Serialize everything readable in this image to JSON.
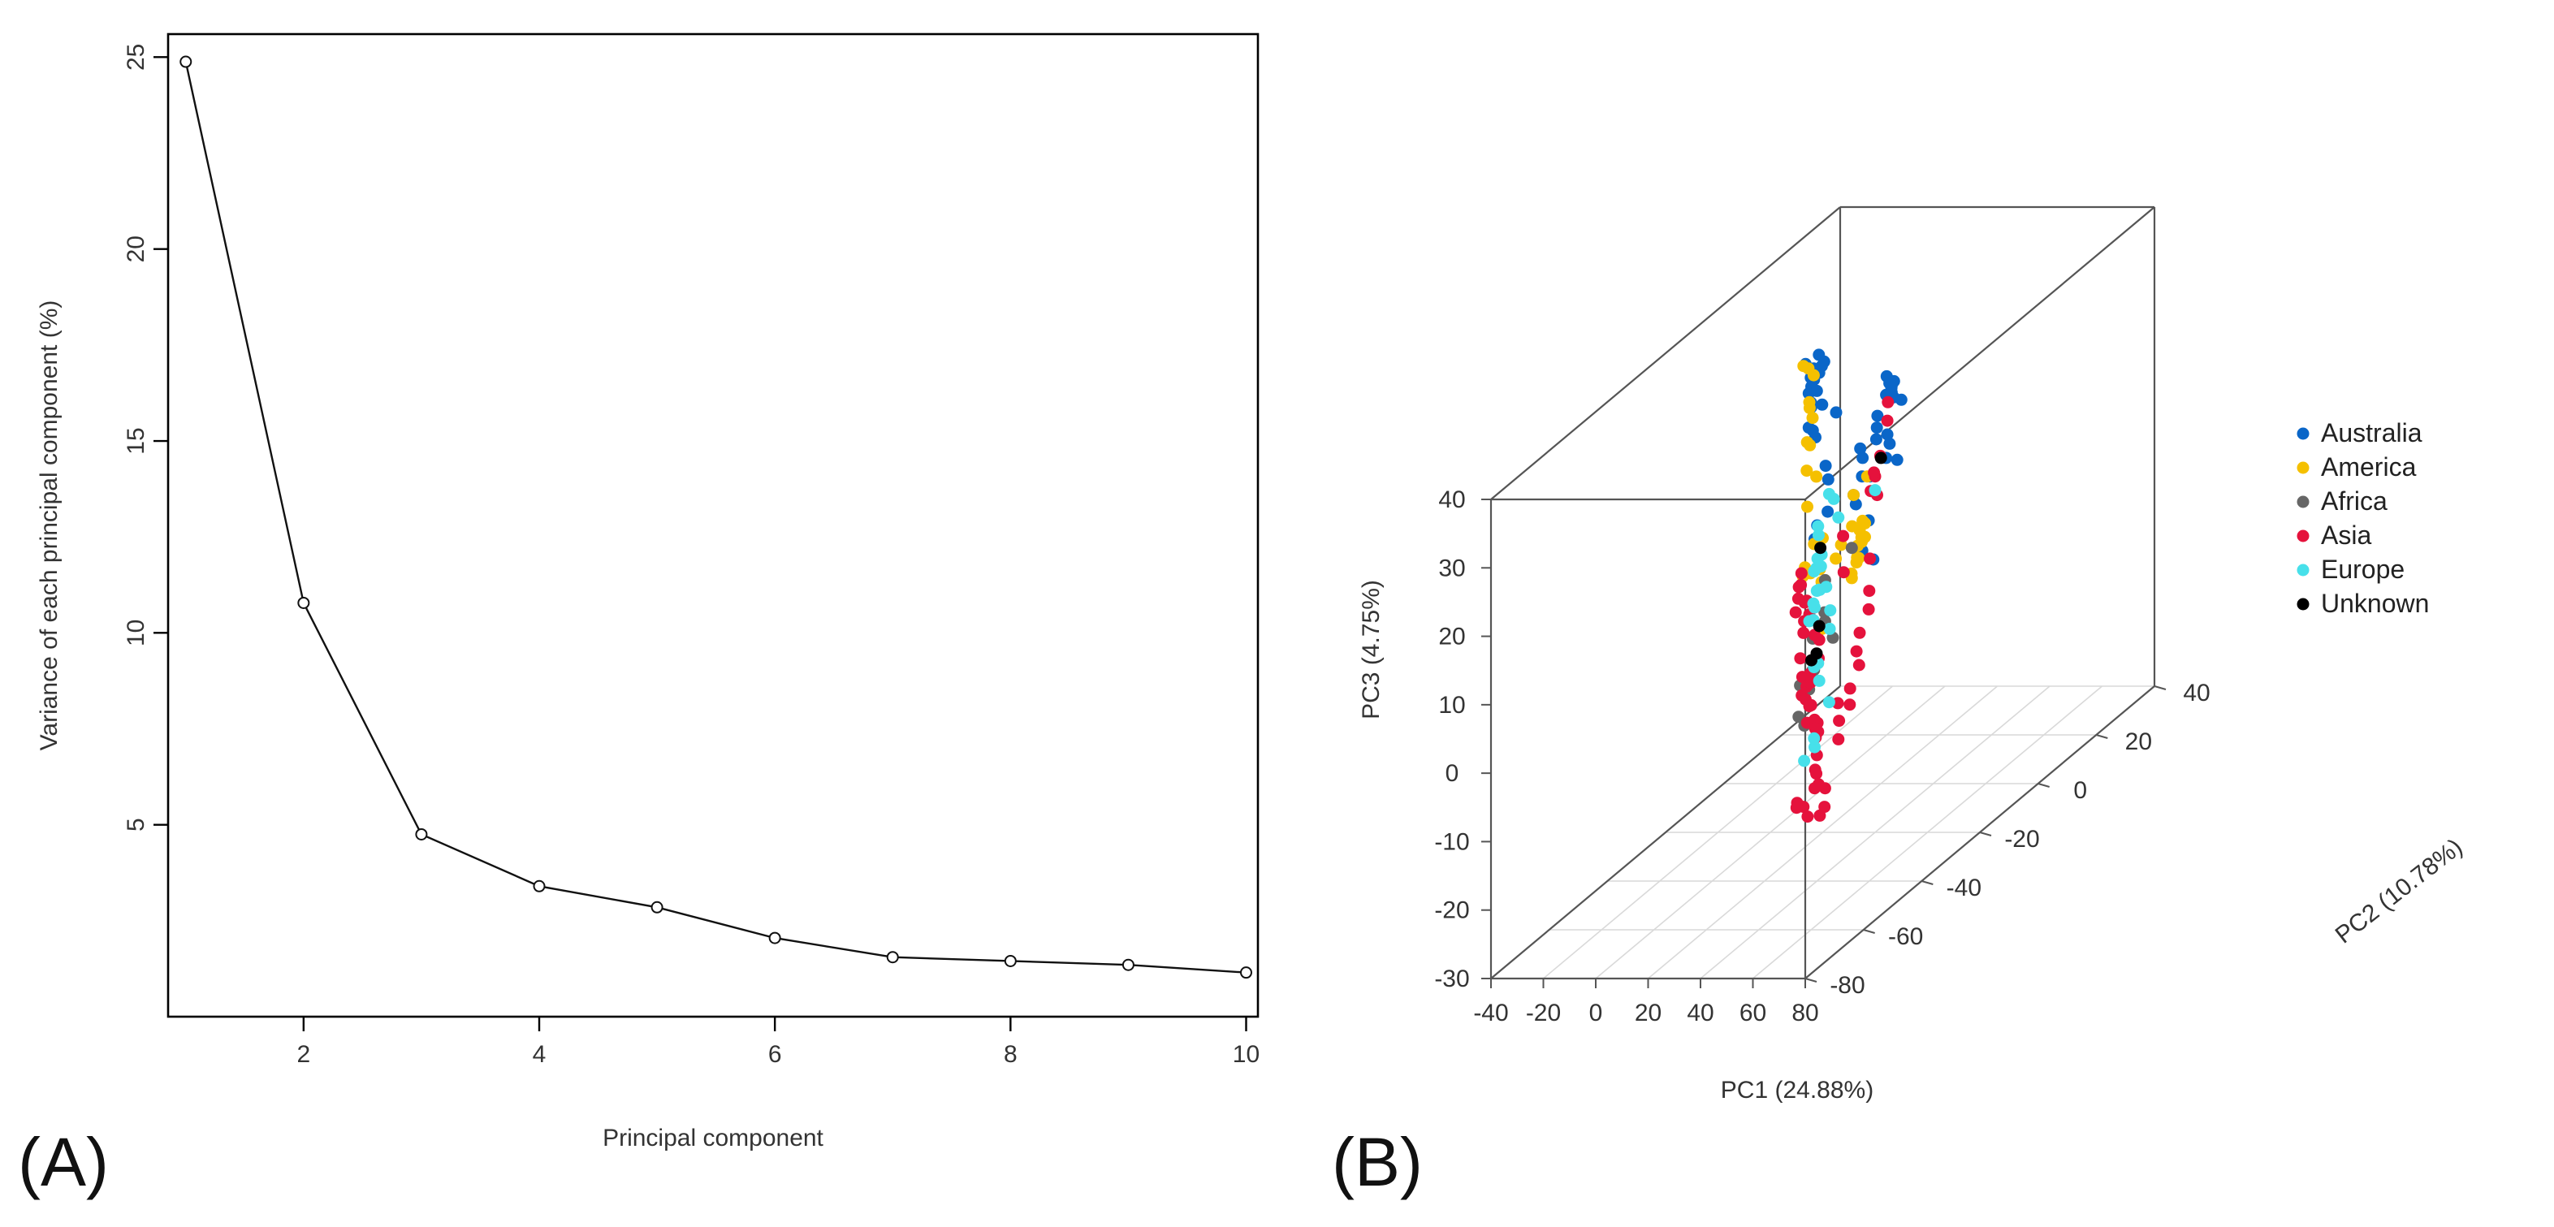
{
  "panels": {
    "a_label": "(A)",
    "b_label": "(B)"
  },
  "chart_data": [
    {
      "type": "line",
      "panel": "A",
      "title": "",
      "xlabel": "Principal component",
      "ylabel": "Variance of each principal component (%)",
      "x": [
        1,
        2,
        3,
        4,
        5,
        6,
        7,
        8,
        9,
        10
      ],
      "values": [
        24.88,
        10.78,
        4.75,
        3.4,
        2.85,
        2.05,
        1.55,
        1.45,
        1.35,
        1.15
      ],
      "xticks": [
        2,
        4,
        6,
        8,
        10
      ],
      "yticks": [
        5,
        10,
        15,
        20,
        25
      ],
      "xlim": [
        0.85,
        10.1
      ],
      "ylim": [
        0,
        25.6
      ],
      "marker": "open-circle"
    },
    {
      "type": "scatter",
      "panel": "B",
      "subtype": "3d-scatter",
      "title": "",
      "xlabel": "PC1 (24.88%)",
      "ylabel": "PC2 (10.78%)",
      "zlabel": "PC3 (4.75%)",
      "xticks": [
        -40,
        -20,
        0,
        20,
        40,
        60,
        80
      ],
      "yticks": [
        -80,
        -60,
        -40,
        -20,
        0,
        20,
        40
      ],
      "zticks": [
        -30,
        -20,
        -10,
        0,
        10,
        20,
        30,
        40
      ],
      "xlim": [
        -40,
        80
      ],
      "ylim": [
        -80,
        40
      ],
      "zlim": [
        -30,
        40
      ],
      "legend_position": "right",
      "legend": [
        {
          "name": "Australia",
          "color": "#0a66c8"
        },
        {
          "name": "America",
          "color": "#f5c000"
        },
        {
          "name": "Africa",
          "color": "#666666"
        },
        {
          "name": "Asia",
          "color": "#e5123c"
        },
        {
          "name": "Europe",
          "color": "#47e0ea"
        },
        {
          "name": "Unknown",
          "color": "#000000"
        }
      ],
      "series": [
        {
          "name": "Australia",
          "points": [
            [
              12,
              -14,
              35
            ],
            [
              13,
              -14,
              36
            ],
            [
              15,
              -15,
              37
            ],
            [
              10,
              -14,
              34
            ],
            [
              9,
              -14,
              33
            ],
            [
              8,
              -14,
              32
            ],
            [
              10,
              -13,
              32
            ],
            [
              11,
              -15,
              36
            ],
            [
              9,
              -16,
              37
            ],
            [
              13,
              -15,
              38
            ],
            [
              11,
              -16,
              35
            ],
            [
              10,
              -15,
              31
            ],
            [
              12,
              -13,
              30
            ],
            [
              9,
              -14,
              30
            ],
            [
              14,
              -18,
              28
            ],
            [
              15,
              -18,
              27
            ],
            [
              8,
              -14,
              27
            ],
            [
              10,
              -10,
              20
            ],
            [
              11,
              -10,
              18
            ],
            [
              13,
              -12,
              14
            ],
            [
              9,
              -12,
              12
            ],
            [
              8,
              -12,
              10
            ],
            [
              24,
              -19,
              31
            ],
            [
              30,
              -7,
              32
            ],
            [
              31,
              -7,
              31
            ],
            [
              32,
              -9,
              30
            ],
            [
              34,
              -9,
              31
            ],
            [
              33,
              -8,
              30
            ],
            [
              35,
              -9,
              32
            ],
            [
              36,
              -10,
              30
            ],
            [
              32,
              -12,
              28
            ],
            [
              34,
              -14,
              27
            ],
            [
              36,
              -16,
              26
            ],
            [
              38,
              -14,
              26
            ],
            [
              40,
              -15,
              25
            ],
            [
              42,
              -18,
              24
            ],
            [
              44,
              -16,
              23
            ],
            [
              38,
              -20,
              22
            ],
            [
              33,
              -18,
              24
            ],
            [
              34,
              -22,
              20
            ],
            [
              36,
              -23,
              19
            ],
            [
              33,
              -8,
              31
            ],
            [
              42,
              -24,
              17
            ],
            [
              44,
              -28,
              14
            ],
            [
              46,
              -26,
              12
            ],
            [
              31,
              -17,
              25
            ],
            [
              35,
              -20,
              22
            ],
            [
              40,
              -11,
              30
            ]
          ]
        },
        {
          "name": "America",
          "points": [
            [
              6,
              -14,
              36
            ],
            [
              9,
              -15,
              36
            ],
            [
              11,
              -15,
              35
            ],
            [
              6,
              -12,
              30
            ],
            [
              5,
              -10,
              27
            ],
            [
              4,
              -10,
              23
            ],
            [
              5,
              -12,
              20
            ],
            [
              2,
              -6,
              17
            ],
            [
              3,
              -10,
              14
            ],
            [
              14,
              -20,
              27
            ],
            [
              15,
              -20,
              32
            ],
            [
              10,
              -14,
              10
            ],
            [
              11,
              -18,
              8
            ],
            [
              8,
              -16,
              6
            ],
            [
              34,
              -22,
              20
            ],
            [
              37,
              -20,
              22
            ],
            [
              40,
              -26,
              14
            ],
            [
              43,
              -28,
              17
            ],
            [
              45,
              -28,
              18
            ],
            [
              46,
              -30,
              16
            ],
            [
              47,
              -31,
              17
            ],
            [
              46,
              -31,
              14
            ],
            [
              44,
              -30,
              13
            ],
            [
              42,
              -28,
              13
            ],
            [
              41,
              -29,
              11
            ],
            [
              43,
              -27,
              18
            ],
            [
              45,
              -28,
              16
            ],
            [
              40,
              -28,
              10
            ],
            [
              29,
              -18,
              14
            ],
            [
              27,
              -20,
              12
            ],
            [
              25,
              -20,
              10
            ],
            [
              31,
              -30,
              10
            ],
            [
              24,
              -24,
              8
            ],
            [
              30,
              -30,
              12
            ],
            [
              33,
              -32,
              4
            ],
            [
              20,
              -20,
              13
            ],
            [
              22,
              -26,
              10
            ]
          ]
        },
        {
          "name": "Africa",
          "points": [
            [
              20,
              -10,
              8
            ],
            [
              12,
              -12,
              4
            ],
            [
              14,
              -14,
              0
            ],
            [
              12,
              -12,
              -2
            ],
            [
              30,
              -32,
              -2
            ],
            [
              35,
              -30,
              2
            ],
            [
              34,
              -36,
              4
            ],
            [
              36,
              -38,
              0
            ],
            [
              33,
              -38,
              -8
            ],
            [
              33,
              -40,
              -6
            ],
            [
              38,
              -44,
              0
            ],
            [
              37,
              -40,
              -2
            ]
          ]
        },
        {
          "name": "Asia",
          "points": [
            [
              3,
              -12,
              5
            ],
            [
              2,
              -12,
              3
            ],
            [
              4,
              -14,
              2
            ],
            [
              5,
              -12,
              1
            ],
            [
              3,
              -14,
              0
            ],
            [
              6,
              -12,
              -1
            ],
            [
              2,
              -10,
              0
            ],
            [
              4,
              -12,
              -2
            ],
            [
              6,
              -14,
              -3
            ],
            [
              8,
              -12,
              -4
            ],
            [
              5,
              -14,
              4
            ],
            [
              7,
              -16,
              -6
            ],
            [
              10,
              -18,
              -8
            ],
            [
              12,
              -20,
              -10
            ],
            [
              9,
              -16,
              -12
            ],
            [
              14,
              -20,
              -14
            ],
            [
              16,
              -22,
              -8
            ],
            [
              20,
              -24,
              -10
            ],
            [
              24,
              -26,
              -14
            ],
            [
              26,
              -28,
              -18
            ],
            [
              28,
              -30,
              -20
            ],
            [
              30,
              -30,
              -24
            ],
            [
              26,
              -32,
              -22
            ],
            [
              32,
              -30,
              -20
            ],
            [
              34,
              -32,
              -22
            ],
            [
              28,
              -36,
              -20
            ],
            [
              30,
              -38,
              -20
            ],
            [
              32,
              -36,
              -22
            ],
            [
              34,
              -34,
              -18
            ],
            [
              22,
              -24,
              -20
            ],
            [
              20,
              -22,
              -18
            ],
            [
              16,
              -18,
              -16
            ],
            [
              18,
              -20,
              -14
            ],
            [
              14,
              -16,
              -6
            ],
            [
              12,
              -14,
              -4
            ],
            [
              22,
              -26,
              -6
            ],
            [
              24,
              -28,
              -4
            ],
            [
              26,
              -30,
              -8
            ],
            [
              28,
              -30,
              -10
            ],
            [
              26,
              -28,
              -12
            ],
            [
              36,
              -12,
              30
            ],
            [
              38,
              -14,
              28
            ],
            [
              40,
              -20,
              22
            ],
            [
              42,
              -20,
              25
            ],
            [
              43,
              -22,
              20
            ],
            [
              44,
              -24,
              24
            ],
            [
              45,
              -26,
              22
            ],
            [
              38,
              -20,
              10
            ],
            [
              40,
              -22,
              6
            ],
            [
              42,
              -24,
              4
            ],
            [
              43,
              -28,
              2
            ],
            [
              44,
              -30,
              0
            ],
            [
              45,
              -30,
              -2
            ],
            [
              46,
              -34,
              -4
            ],
            [
              47,
              -35,
              -6
            ],
            [
              44,
              -36,
              -8
            ],
            [
              46,
              -38,
              -10
            ],
            [
              48,
              -40,
              -4
            ],
            [
              30,
              -22,
              14
            ],
            [
              28,
              -20,
              8
            ]
          ]
        },
        {
          "name": "Europe",
          "points": [
            [
              14,
              -16,
              12
            ],
            [
              18,
              -16,
              18
            ],
            [
              16,
              -18,
              14
            ],
            [
              18,
              -20,
              10
            ],
            [
              20,
              -22,
              6
            ],
            [
              22,
              -24,
              10
            ],
            [
              24,
              -24,
              12
            ],
            [
              26,
              -26,
              11
            ],
            [
              28,
              -26,
              8
            ],
            [
              30,
              -30,
              9
            ],
            [
              10,
              -14,
              6
            ],
            [
              12,
              -16,
              2
            ],
            [
              14,
              -16,
              4
            ],
            [
              16,
              -18,
              -6
            ],
            [
              8,
              -12,
              0
            ],
            [
              6,
              -12,
              -2
            ],
            [
              10,
              -14,
              -8
            ],
            [
              12,
              -14,
              -10
            ],
            [
              26,
              -20,
              16
            ],
            [
              22,
              -18,
              18
            ],
            [
              24,
              -30,
              -16
            ],
            [
              28,
              -30,
              -14
            ],
            [
              32,
              -34,
              6
            ],
            [
              34,
              -30,
              6
            ],
            [
              36,
              -32,
              4
            ],
            [
              30,
              -32,
              -12
            ],
            [
              38,
              -34,
              -6
            ],
            [
              40,
              -20,
              20
            ]
          ]
        },
        {
          "name": "Unknown",
          "points": [
            [
              8,
              -10,
              8
            ],
            [
              11,
              -14,
              -6
            ],
            [
              12,
              -14,
              -2
            ],
            [
              9,
              -14,
              -7
            ],
            [
              40,
              -18,
              24
            ]
          ]
        }
      ]
    }
  ]
}
